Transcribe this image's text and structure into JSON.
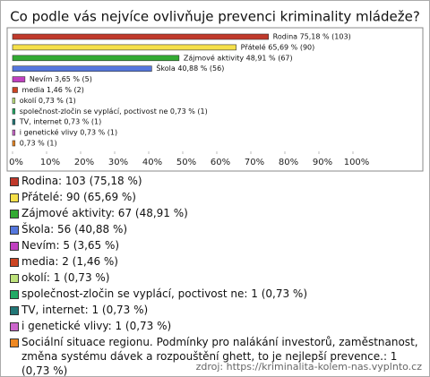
{
  "chart_data": {
    "type": "hbar",
    "title": "Co podle vás nejvíce ovlivňuje prevenci kriminality mládeže?",
    "values": [
      75.18,
      65.69,
      48.91,
      40.88,
      3.65,
      1.46,
      0.73,
      0.73,
      0.73,
      0.73,
      0.73
    ],
    "value_labels": [
      "Rodina 75,18 % (103)",
      "Přátelé 65,69 % (90)",
      "Zájmové aktivity 48,91 % (67)",
      "Škola 40,88 % (56)",
      "Nevím 3,65 % (5)",
      "media 1,46 % (2)",
      "okolí 0,73 % (1)",
      "společnost-zločin se vyplácí, poctivost ne 0,73 % (1)",
      "TV, internet 0,73 % (1)",
      "i genetické vlivy 0,73 % (1)",
      "0,73 % (1)"
    ],
    "colors": [
      "#c0392b",
      "#f5e04a",
      "#33aa33",
      "#5577dd",
      "#c040c0",
      "#cc4422",
      "#bde27b",
      "#22aa66",
      "#227777",
      "#cc66cc",
      "#ee8822"
    ],
    "legend_labels": [
      "Rodina: 103 (75,18 %)",
      "Přátelé: 90 (65,69 %)",
      "Zájmové aktivity: 67 (48,91 %)",
      "Škola: 56 (40,88 %)",
      "Nevím: 5 (3,65 %)",
      "media: 2 (1,46 %)",
      "okolí: 1 (0,73 %)",
      "společnost-zločin se vyplácí, poctivost ne: 1 (0,73 %)",
      "TV, internet: 1 (0,73 %)",
      "i genetické vlivy: 1 (0,73 %)",
      "Sociální situace regionu. Podmínky pro nalákání investorů, zaměstnanost, změna systému dávek a rozpouštění ghett, to je nejlepší prevence.: 1 (0,73 %)"
    ],
    "xlim": [
      0,
      100
    ],
    "xticks": [
      {
        "value": 0,
        "label": "0%"
      },
      {
        "value": 10,
        "label": "10%"
      },
      {
        "value": 20,
        "label": "20%"
      },
      {
        "value": 30,
        "label": "30%"
      },
      {
        "value": 40,
        "label": "40%"
      },
      {
        "value": 50,
        "label": "50%"
      },
      {
        "value": 60,
        "label": "60%"
      },
      {
        "value": 70,
        "label": "70%"
      },
      {
        "value": 80,
        "label": "80%"
      },
      {
        "value": 90,
        "label": "90%"
      },
      {
        "value": 100,
        "label": "100%"
      }
    ],
    "grid": false,
    "source": "zdroj: https://kriminalita-kolem-nas.vyplnto.cz"
  }
}
